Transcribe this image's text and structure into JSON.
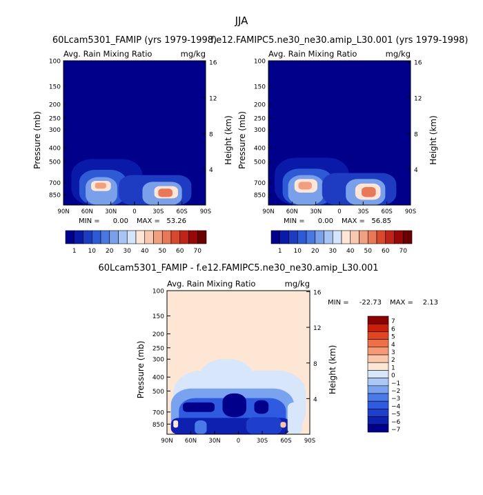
{
  "figure": {
    "title": "JJA",
    "colors": {
      "background": "#ffffff",
      "axis": "#000000"
    }
  },
  "chart_data": [
    {
      "type": "heatmap",
      "panel": "top-left",
      "title": "60Lcam5301_FAMIP (yrs 1979-1998)",
      "field_label": "Avg. Rain Mixing Ratio",
      "units": "mg/kg",
      "xlabel": "",
      "ylabel": "Pressure (mb)",
      "y2label": "Height (km)",
      "x_ticks": [
        "90N",
        "60N",
        "30N",
        "0",
        "30S",
        "60S",
        "90S"
      ],
      "y_ticks": [
        "100",
        "150",
        "200",
        "250",
        "300",
        "400",
        "500",
        "700",
        "850"
      ],
      "y2_ticks": [
        "16",
        "12",
        "8",
        "4"
      ],
      "xlim": [
        90,
        -90
      ],
      "ylim": [
        100,
        1000
      ],
      "y_scale": "log-pressure",
      "min_label": "MIN =",
      "min_value": "0.00",
      "max_label": "MAX =",
      "max_value": "53.26",
      "contour_levels": [
        1,
        5,
        10,
        15,
        20,
        25,
        30,
        35,
        40,
        45,
        50,
        55,
        60,
        65,
        70
      ],
      "colorbar_labels": [
        "1",
        "10",
        "20",
        "30",
        "40",
        "50",
        "60",
        "70"
      ],
      "background_level": 1,
      "regions": [
        {
          "lat_range": [
            80,
            -10
          ],
          "p_range": [
            480,
            1000
          ],
          "level": 5
        },
        {
          "lat_range": [
            70,
            10
          ],
          "p_range": [
            570,
            1000
          ],
          "level": 15
        },
        {
          "lat_range": [
            62,
            22
          ],
          "p_range": [
            640,
            1000
          ],
          "level": 25
        },
        {
          "lat_range": [
            55,
            30
          ],
          "p_range": [
            680,
            800
          ],
          "level": 40
        },
        {
          "lat_range": [
            50,
            36
          ],
          "p_range": [
            700,
            770
          ],
          "level": 50
        },
        {
          "lat_range": [
            20,
            -72
          ],
          "p_range": [
            620,
            1000
          ],
          "level": 10
        },
        {
          "lat_range": [
            -10,
            -60
          ],
          "p_range": [
            690,
            1000
          ],
          "level": 25
        },
        {
          "lat_range": [
            -25,
            -55
          ],
          "p_range": [
            740,
            900
          ],
          "level": 40
        },
        {
          "lat_range": [
            -30,
            -48
          ],
          "p_range": [
            770,
            880
          ],
          "level": 52
        }
      ]
    },
    {
      "type": "heatmap",
      "panel": "top-right",
      "title": "f.e12.FAMIPC5.ne30_ne30.amip_L30.001 (yrs 1979-1998)",
      "field_label": "Avg. Rain Mixing Ratio",
      "units": "mg/kg",
      "xlabel": "",
      "ylabel": "Pressure (mb)",
      "y2label": "Height (km)",
      "x_ticks": [
        "90N",
        "60N",
        "30N",
        "0",
        "30S",
        "60S",
        "90S"
      ],
      "y_ticks": [
        "100",
        "150",
        "200",
        "250",
        "300",
        "400",
        "500",
        "700",
        "850"
      ],
      "y2_ticks": [
        "16",
        "12",
        "8",
        "4"
      ],
      "xlim": [
        90,
        -90
      ],
      "ylim": [
        100,
        1000
      ],
      "y_scale": "log-pressure",
      "min_label": "MIN =",
      "min_value": "0.00",
      "max_label": "MAX =",
      "max_value": "56.85",
      "contour_levels": [
        1,
        5,
        10,
        15,
        20,
        25,
        30,
        35,
        40,
        45,
        50,
        55,
        60,
        65,
        70
      ],
      "colorbar_labels": [
        "1",
        "10",
        "20",
        "30",
        "40",
        "50",
        "60",
        "70"
      ],
      "background_level": 1,
      "regions": [
        {
          "lat_range": [
            82,
            -12
          ],
          "p_range": [
            470,
            1000
          ],
          "level": 5
        },
        {
          "lat_range": [
            72,
            8
          ],
          "p_range": [
            560,
            1000
          ],
          "level": 15
        },
        {
          "lat_range": [
            65,
            20
          ],
          "p_range": [
            620,
            1000
          ],
          "level": 25
        },
        {
          "lat_range": [
            57,
            28
          ],
          "p_range": [
            660,
            820
          ],
          "level": 40
        },
        {
          "lat_range": [
            52,
            35
          ],
          "p_range": [
            690,
            780
          ],
          "level": 50
        },
        {
          "lat_range": [
            22,
            -72
          ],
          "p_range": [
            600,
            1000
          ],
          "level": 10
        },
        {
          "lat_range": [
            -8,
            -58
          ],
          "p_range": [
            660,
            1000
          ],
          "level": 25
        },
        {
          "lat_range": [
            -20,
            -52
          ],
          "p_range": [
            710,
            920
          ],
          "level": 40
        },
        {
          "lat_range": [
            -28,
            -46
          ],
          "p_range": [
            750,
            880
          ],
          "level": 55
        }
      ]
    },
    {
      "type": "heatmap",
      "panel": "bottom",
      "title": "60Lcam5301_FAMIP - f.e12.FAMIPC5.ne30_ne30.amip_L30.001",
      "field_label": "Avg. Rain Mixing Ratio",
      "units": "mg/kg",
      "xlabel": "",
      "ylabel": "Pressure (mb)",
      "y2label": "Height (km)",
      "x_ticks": [
        "90N",
        "60N",
        "30N",
        "0",
        "30S",
        "60S",
        "90S"
      ],
      "y_ticks": [
        "100",
        "150",
        "200",
        "250",
        "300",
        "400",
        "500",
        "700",
        "850"
      ],
      "y2_ticks": [
        "16",
        "12",
        "8",
        "4"
      ],
      "xlim": [
        90,
        -90
      ],
      "ylim": [
        100,
        1000
      ],
      "y_scale": "log-pressure",
      "min_label": "MIN =",
      "min_value": "-22.73",
      "max_label": "MAX =",
      "max_value": "2.13",
      "contour_levels": [
        -7,
        -6,
        -5,
        -4,
        -3,
        -2,
        -1,
        0,
        1,
        2,
        3,
        4,
        5,
        6,
        7
      ],
      "colorbar_labels": [
        "7",
        "6",
        "5",
        "4",
        "3",
        "2",
        "1",
        "0",
        "−1",
        "−2",
        "−3",
        "−4",
        "−5",
        "−6",
        "−7"
      ],
      "background_level": 0.5,
      "regions": [
        {
          "lat_range": [
            82,
            -85
          ],
          "p_range": [
            360,
            1000
          ],
          "level": -0.5
        },
        {
          "lat_range": [
            50,
            -20
          ],
          "p_range": [
            300,
            1000
          ],
          "level": -0.5
        },
        {
          "lat_range": [
            85,
            -70
          ],
          "p_range": [
            480,
            1000
          ],
          "level": -2
        },
        {
          "lat_range": [
            75,
            -60
          ],
          "p_range": [
            560,
            1000
          ],
          "level": -4
        },
        {
          "lat_range": [
            70,
            30
          ],
          "p_range": [
            600,
            700
          ],
          "level": -7
        },
        {
          "lat_range": [
            20,
            -10
          ],
          "p_range": [
            520,
            760
          ],
          "level": -7
        },
        {
          "lat_range": [
            -20,
            -38
          ],
          "p_range": [
            580,
            720
          ],
          "level": -7
        },
        {
          "lat_range": [
            85,
            -65
          ],
          "p_range": [
            770,
            1000
          ],
          "level": -6
        },
        {
          "lat_range": [
            55,
            40
          ],
          "p_range": [
            800,
            1000
          ],
          "level": -3
        },
        {
          "lat_range": [
            -10,
            -55
          ],
          "p_range": [
            760,
            1000
          ],
          "level": -5
        },
        {
          "lat_range": [
            82,
            76
          ],
          "p_range": [
            800,
            900
          ],
          "level": 1
        },
        {
          "lat_range": [
            -53,
            -60
          ],
          "p_range": [
            820,
            900
          ],
          "level": 1.5
        },
        {
          "lat_range": [
            -62,
            -80
          ],
          "p_range": [
            600,
            1000
          ],
          "level": -0.5
        }
      ]
    }
  ]
}
